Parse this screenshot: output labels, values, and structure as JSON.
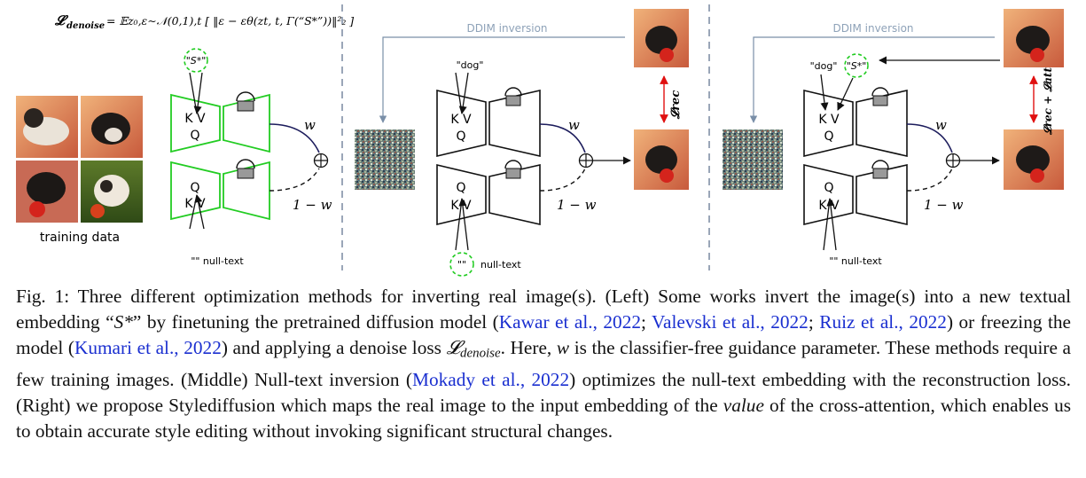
{
  "figure": {
    "loss_label": "𝓛",
    "loss_sub": "denoise",
    "loss_formula": "= 𝔼z₀,ε∼𝒩(0,1),t [ ‖ε − εθ(zt, t, Γ(“S*”))‖²₂ ]",
    "training_label": "training data",
    "ddim_label": "DDIM inversion",
    "token_s": "\"S*\"",
    "token_dog": "\"dog\"",
    "token_null": "\"\"",
    "null_text": "null-text",
    "null_full": "\"\" null-text",
    "kv": "K V",
    "q": "Q",
    "w": "w",
    "one_minus_w": "1 − w",
    "l_rec": "𝓛rec",
    "l_rec_att": "𝓛rec + 𝓛att"
  },
  "caption": {
    "fig_label": "Fig. 1:",
    "t1": " Three different optimization methods for inverting real image(s). (Left) Some works invert the image(s) into a new textual embedding “",
    "s_star": "S*",
    "t2": "” by finetuning the pretrained diffusion model (",
    "c1": "Kawar et al., 2022",
    "sep1": "; ",
    "c2": "Valevski et al., 2022",
    "sep2": "; ",
    "c3": "Ruiz et al., 2022",
    "t3": ") or freezing the model (",
    "c4": "Kumari et al., 2022",
    "t4": ") and applying a denoise loss ",
    "loss": "𝓛",
    "loss_sub": "denoise",
    "t5": ". Here, ",
    "w": "w",
    "t6": " is the classifier-free guidance parameter. These methods require a few training images. (Middle) Null-text inversion (",
    "c5": "Mokady et al., 2022",
    "t7": ") optimizes the null-text embedding with the reconstruction loss. (Right) we propose Stylediffusion which maps the real image to the input embedding of the ",
    "value": "value",
    "t8": " of the cross-attention, which enables us to obtain accurate style editing without invoking significant structural changes."
  }
}
